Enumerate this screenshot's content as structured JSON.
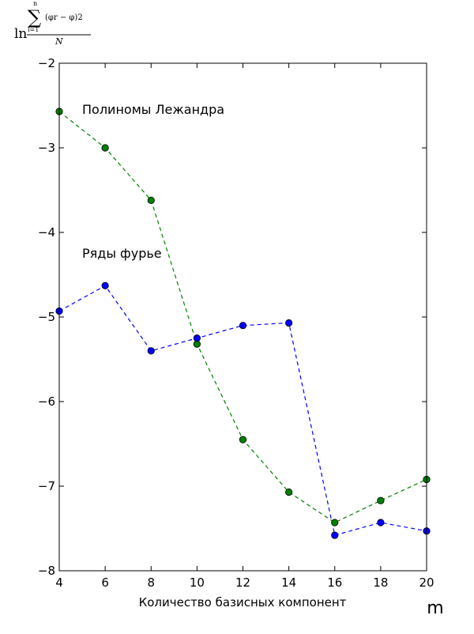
{
  "chart_data": {
    "type": "line",
    "x": [
      4,
      6,
      8,
      10,
      12,
      14,
      16,
      18,
      20
    ],
    "xlim": [
      4,
      20
    ],
    "ylim": [
      -8,
      -2
    ],
    "xticks": [
      4,
      6,
      8,
      10,
      12,
      14,
      16,
      18,
      20
    ],
    "yticks": [
      -2,
      -3,
      -4,
      -5,
      -6,
      -7,
      -8
    ],
    "xlabel": "Количество базисных компонент",
    "x_unit_label": "m",
    "ylabel_formula": {
      "ln": "ln",
      "sum": "∑",
      "upper": "n",
      "lower": "i=1",
      "numerator": "(φr − φ)2",
      "denominator": "N"
    },
    "grid": false,
    "series": [
      {
        "name": "Полиномы Лежандра",
        "color": "#008000",
        "linestyle": "dashed",
        "marker": "circle",
        "values": [
          -2.57,
          -3.0,
          -3.62,
          -5.32,
          -6.45,
          -7.07,
          -7.43,
          -7.17,
          -6.92
        ]
      },
      {
        "name": "Ряды фурье",
        "color": "#0000ff",
        "linestyle": "dashed",
        "marker": "circle",
        "values": [
          -4.93,
          -4.63,
          -5.4,
          -5.25,
          -5.1,
          -5.07,
          -7.58,
          -7.43,
          -7.53
        ]
      }
    ]
  }
}
